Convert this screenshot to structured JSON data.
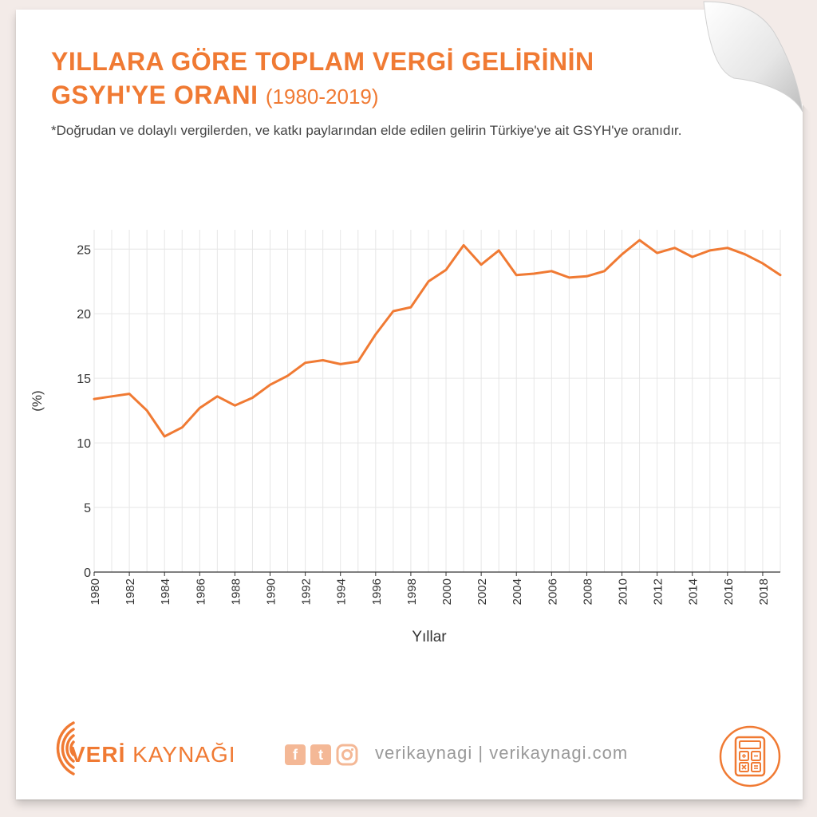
{
  "header": {
    "title_main": "YILLARA GÖRE TOPLAM VERGİ GELİRİNİN GSYH'YE ORANI",
    "title_years": "(1980-2019)",
    "subtitle": "*Doğrudan ve dolaylı vergilerden, ve katkı paylarından elde edilen gelirin Türkiye'ye ait GSYH'ye oranıdır."
  },
  "chart_data": {
    "type": "line",
    "xlabel": "Yıllar",
    "ylabel": "(%)",
    "ylim": [
      0,
      26.5
    ],
    "xlim": [
      1980,
      2019
    ],
    "yticks": [
      0,
      5,
      10,
      15,
      20,
      25
    ],
    "xticks": [
      1980,
      1982,
      1984,
      1986,
      1988,
      1990,
      1992,
      1994,
      1996,
      1998,
      2000,
      2002,
      2004,
      2006,
      2008,
      2010,
      2012,
      2014,
      2016,
      2018
    ],
    "grid": "vertical and horizontal",
    "line_color": "#f07a33",
    "x": [
      1980,
      1981,
      1982,
      1983,
      1984,
      1985,
      1986,
      1987,
      1988,
      1989,
      1990,
      1991,
      1992,
      1993,
      1994,
      1995,
      1996,
      1997,
      1998,
      1999,
      2000,
      2001,
      2002,
      2003,
      2004,
      2005,
      2006,
      2007,
      2008,
      2009,
      2010,
      2011,
      2012,
      2013,
      2014,
      2015,
      2016,
      2017,
      2018,
      2019
    ],
    "values": [
      13.4,
      13.6,
      13.8,
      12.5,
      10.5,
      11.2,
      12.7,
      13.6,
      12.9,
      13.5,
      14.5,
      15.2,
      16.2,
      16.4,
      16.1,
      16.3,
      18.4,
      20.2,
      20.5,
      22.5,
      23.4,
      25.3,
      23.8,
      24.9,
      23.0,
      23.1,
      23.3,
      22.8,
      22.9,
      23.3,
      24.6,
      25.7,
      24.7,
      25.1,
      24.4,
      24.9,
      25.1,
      24.6,
      23.9,
      23.0
    ]
  },
  "footer": {
    "brand_bold": "VERİ",
    "brand_rest": " KAYNAĞI",
    "social_handle": "verikaynagi | verikaynagi.com",
    "facebook_glyph": "f",
    "twitter_glyph": "t",
    "brand_color": "#f07a33"
  }
}
